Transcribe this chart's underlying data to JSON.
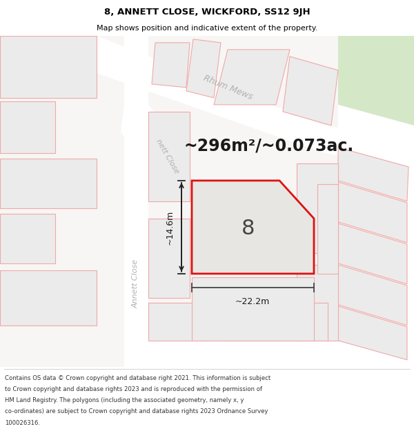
{
  "title": "8, ANNETT CLOSE, WICKFORD, SS12 9JH",
  "subtitle": "Map shows position and indicative extent of the property.",
  "footer_lines": [
    "Contains OS data © Crown copyright and database right 2021. This information is subject",
    "to Crown copyright and database rights 2023 and is reproduced with the permission of",
    "HM Land Registry. The polygons (including the associated geometry, namely x, y",
    "co-ordinates) are subject to Crown copyright and database rights 2023 Ordnance Survey",
    "100026316."
  ],
  "map_bg": "#f7f6f4",
  "plot_fill": "#e8e6e2",
  "plot_outline": "#dd1111",
  "neighbor_fill": "#ebebeb",
  "neighbor_outline": "#f0a8a8",
  "road_color": "#ffffff",
  "area_text": "~296m²/~0.073ac.",
  "dim_h": "~14.6m",
  "dim_w": "~22.2m",
  "plot_label": "8",
  "green_color": "#d4e8c8"
}
